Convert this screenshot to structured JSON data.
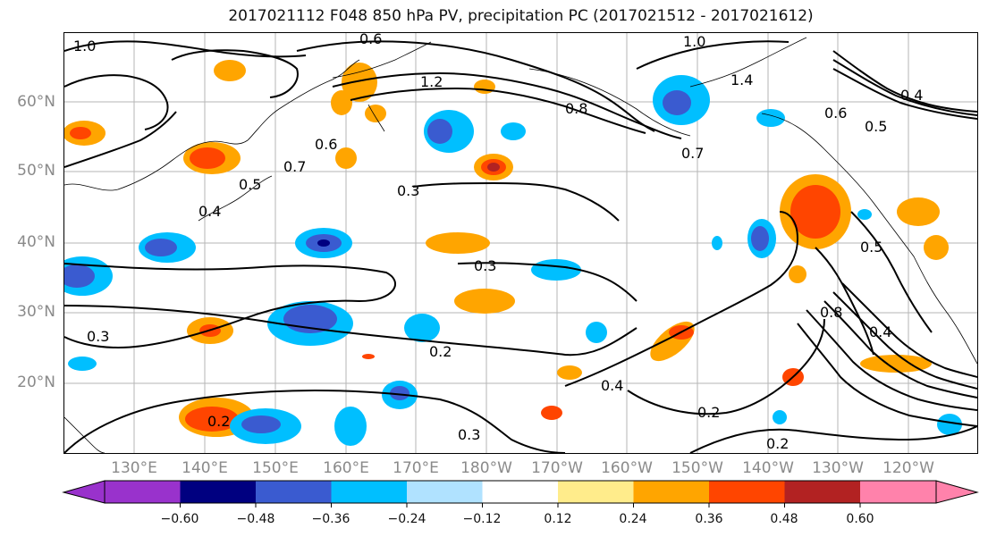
{
  "title": "2017021112 F048 850 hPa PV, precipitation PC (2017021512 - 2017021612)",
  "lat_labels": [
    "60°N",
    "50°N",
    "40°N",
    "30°N",
    "20°N"
  ],
  "lon_labels": [
    "130°E",
    "140°E",
    "150°E",
    "160°E",
    "170°E",
    "180°W",
    "170°W",
    "160°W",
    "150°W",
    "140°W",
    "130°W",
    "120°W"
  ],
  "contour_labels": [
    "0.3",
    "0.3",
    "0.2",
    "0.3",
    "0.2",
    "0.4",
    "0.2",
    "0.2",
    "0.3",
    "0.4",
    "0.8",
    "0.7",
    "1.0",
    "1.4",
    "1.0",
    "1.2",
    "0.6",
    "0.4",
    "0.5",
    "0.6",
    "0.5",
    "0.7",
    "0.8",
    "0.4",
    "0.5",
    "0.6"
  ],
  "colorbar": {
    "ticks": [
      "−0.60",
      "−0.48",
      "−0.36",
      "−0.24",
      "−0.12",
      "0.12",
      "0.24",
      "0.36",
      "0.48",
      "0.60"
    ],
    "colors": [
      "#9932CC",
      "#000080",
      "#3A5BD0",
      "#00BFFF",
      "#B0E2FF",
      "#FFFFFF",
      "#FFEC8B",
      "#FFA500",
      "#FF4500",
      "#B22222",
      "#FF82AB",
      "#FF82AB"
    ]
  }
}
